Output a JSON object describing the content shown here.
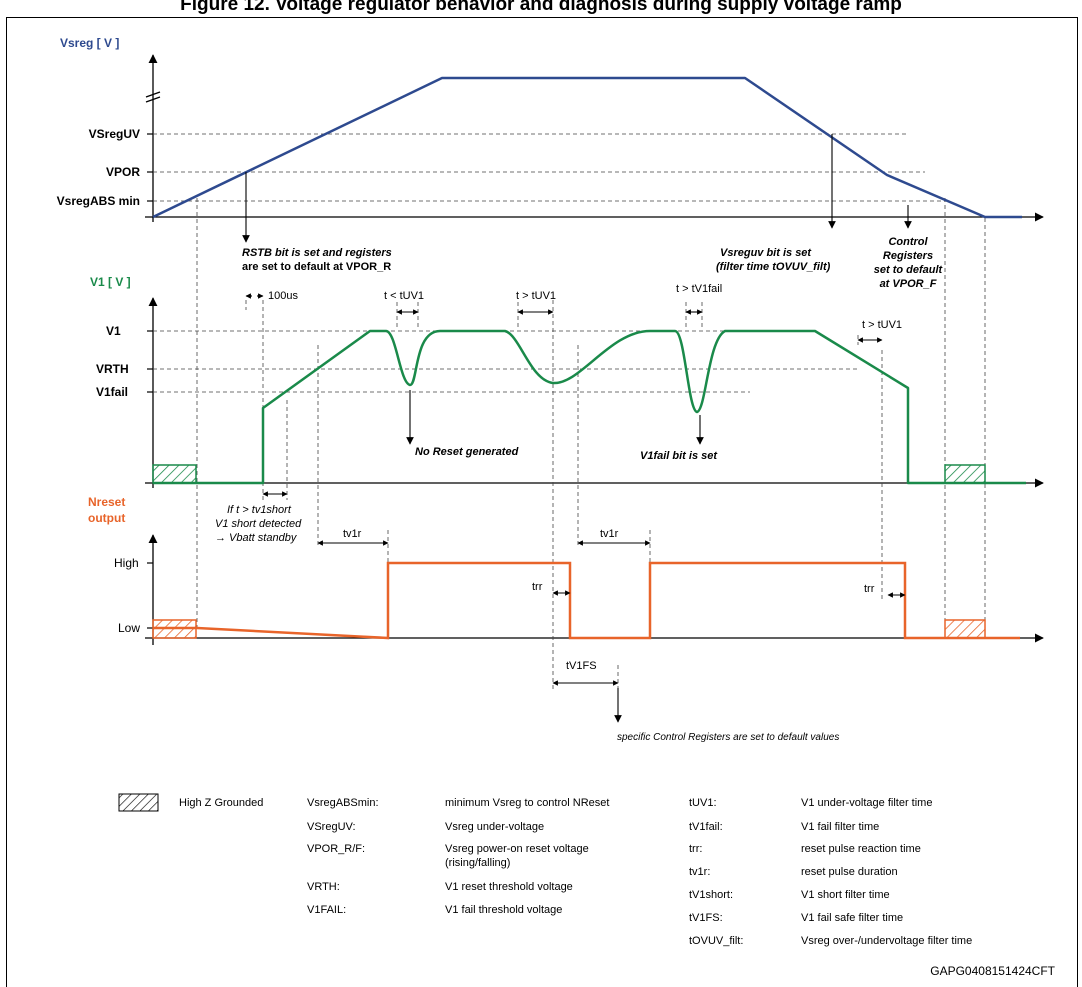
{
  "title": "Figure 12. Voltage regulator behavior and diagnosis during supply voltage ramp",
  "colors": {
    "vsreg": "#2e4a8f",
    "v1": "#1a8a4a",
    "nreset": "#e8642a",
    "grid": "#555555"
  },
  "vsreg": {
    "axis_label": "Vsreg [ V ]",
    "levels": [
      "VSregUV",
      "VPOR",
      "VsregABS min"
    ]
  },
  "v1": {
    "axis_label": "V1 [ V ]",
    "levels": [
      "V1",
      "VRTH",
      "V1fail"
    ]
  },
  "nreset": {
    "axis_label_1": "Nreset",
    "axis_label_2": "output",
    "levels": [
      "High",
      "Low"
    ]
  },
  "annotations": {
    "rstb_1": "RSTB bit is set and registers",
    "rstb_2": "are set to default at VPOR_R",
    "vsreguv_1": "Vsreguv bit is set",
    "vsreguv_2": "(filter time tOVUV_filt)",
    "ctrl_1": "Control",
    "ctrl_2": "Registers",
    "ctrl_3": "set to default",
    "ctrl_4": "at VPOR_F",
    "t100us": "100us",
    "t_lt_tuv1": "t < tUV1",
    "t_gt_tuv1_a": "t > tUV1",
    "t_gt_tv1fail": "t > tV1fail",
    "t_gt_tuv1_b": "t > tUV1",
    "no_reset": "No Reset generated",
    "v1fail_set": "V1fail bit is set",
    "short_1": "If t > tv1short",
    "short_2": "V1 short detected",
    "short_3": "→ Vbatt standby",
    "tv1r_a": "tv1r",
    "tv1r_b": "tv1r",
    "trr_a": "trr",
    "trr_b": "trr",
    "tv1fs": "tV1FS",
    "specific": "specific Control Registers are set to default values"
  },
  "legend": {
    "highz": "High Z Grounded",
    "col1": [
      {
        "term": "VsregABSmin:",
        "desc": "minimum Vsreg to control NReset"
      },
      {
        "term": "VSregUV:",
        "desc": "Vsreg under-voltage"
      },
      {
        "term": "VPOR_R/F:",
        "desc": "Vsreg power-on reset voltage",
        "desc2": "(rising/falling)"
      },
      {
        "term": "VRTH:",
        "desc": "V1 reset threshold voltage"
      },
      {
        "term": "V1FAIL:",
        "desc": "V1 fail threshold voltage"
      }
    ],
    "col2": [
      {
        "term": "tUV1:",
        "desc": "V1 under-voltage filter time"
      },
      {
        "term": "tV1fail:",
        "desc": "V1 fail filter time"
      },
      {
        "term": "trr:",
        "desc": "reset pulse reaction time"
      },
      {
        "term": "tv1r:",
        "desc": "reset pulse duration"
      },
      {
        "term": "tV1short:",
        "desc": "V1 short filter time"
      },
      {
        "term": "tV1FS:",
        "desc": "V1 fail safe filter time"
      },
      {
        "term": "tOVUV_filt:",
        "desc": "Vsreg over-/undervoltage filter time"
      }
    ]
  },
  "figure_id": "GAPG0408151424CFT"
}
